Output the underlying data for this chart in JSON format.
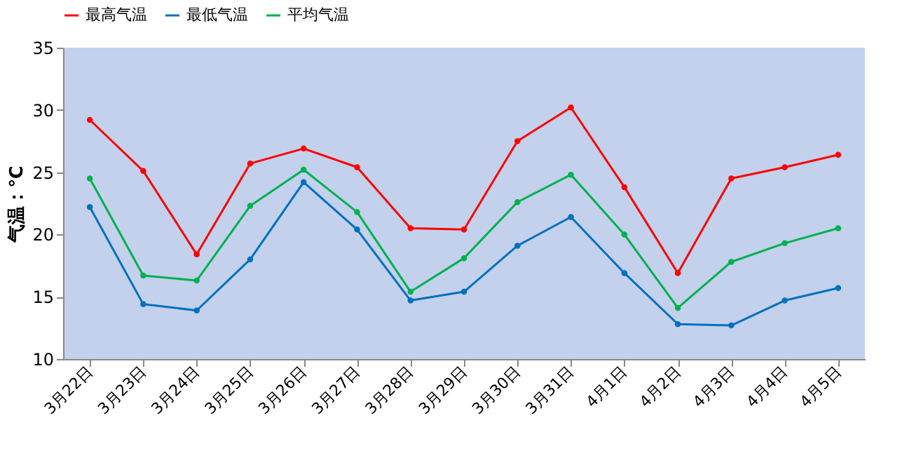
{
  "chart_data": {
    "type": "line",
    "ylabel": "气温：℃",
    "categories": [
      "3月22日",
      "3月23日",
      "3月24日",
      "3月25日",
      "3月26日",
      "3月27日",
      "3月28日",
      "3月29日",
      "3月30日",
      "3月31日",
      "4月1日",
      "4月2日",
      "4月3日",
      "4月4日",
      "4月5日"
    ],
    "series": [
      {
        "name": "最高气温",
        "color": "#ff0000",
        "values": [
          29.2,
          25.1,
          18.4,
          25.7,
          26.9,
          25.4,
          20.5,
          20.4,
          27.5,
          30.2,
          23.8,
          16.9,
          24.5,
          25.4,
          26.4
        ]
      },
      {
        "name": "最低气温",
        "color": "#0070c0",
        "values": [
          22.2,
          14.4,
          13.9,
          18.0,
          24.2,
          20.4,
          14.7,
          15.4,
          19.1,
          21.4,
          16.9,
          12.8,
          12.7,
          14.7,
          15.7
        ]
      },
      {
        "name": "平均气温",
        "color": "#00b050",
        "values": [
          24.5,
          16.7,
          16.3,
          22.3,
          25.2,
          21.8,
          15.4,
          18.1,
          22.6,
          24.8,
          20.0,
          14.1,
          17.8,
          19.3,
          20.5
        ]
      }
    ],
    "ylim": [
      10,
      35
    ],
    "yticks": [
      10,
      15,
      20,
      25,
      30,
      35
    ],
    "grid": false,
    "legend": "top",
    "marker": "circle",
    "line_style": "solid"
  }
}
